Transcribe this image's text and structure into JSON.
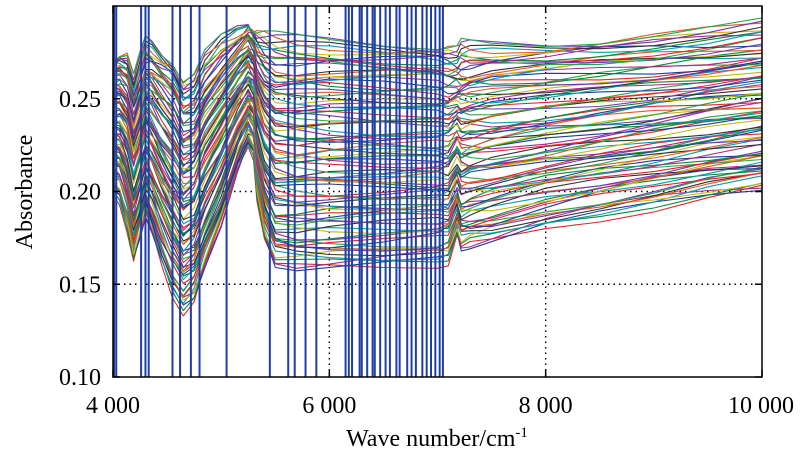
{
  "chart_data": {
    "type": "line",
    "title": "",
    "xlabel": "Wave number/cm",
    "xlabel_superscript": "-1",
    "ylabel": "Absorbance",
    "xlim": [
      4000,
      10000
    ],
    "ylim": [
      0.1,
      0.3
    ],
    "x_ticks": [
      4000,
      6000,
      8000,
      10000
    ],
    "x_tick_labels": [
      "4 000",
      "6 000",
      "8 000",
      "10 000"
    ],
    "y_ticks": [
      0.1,
      0.15,
      0.2,
      0.25
    ],
    "y_tick_labels": [
      "0.10",
      "0.15",
      "0.20",
      "0.25"
    ],
    "grid": "dotted",
    "series_count": 90,
    "spectrum_shape": {
      "x": [
        4000,
        4060,
        4130,
        4190,
        4250,
        4300,
        4360,
        4450,
        4550,
        4650,
        4750,
        4850,
        5000,
        5150,
        5250,
        5300,
        5330,
        5400,
        5500,
        5700,
        6000,
        6500,
        7000,
        7100,
        7180,
        7220,
        7300,
        7500,
        8000,
        8500,
        9000,
        9500,
        10000
      ],
      "top_curve": [
        0.273,
        0.276,
        0.275,
        0.262,
        0.272,
        0.281,
        0.28,
        0.276,
        0.272,
        0.26,
        0.262,
        0.273,
        0.282,
        0.288,
        0.292,
        0.289,
        0.287,
        0.285,
        0.283,
        0.282,
        0.282,
        0.281,
        0.28,
        0.279,
        0.277,
        0.279,
        0.279,
        0.28,
        0.281,
        0.283,
        0.285,
        0.287,
        0.29
      ],
      "bottom_curve": [
        0.198,
        0.195,
        0.181,
        0.164,
        0.176,
        0.187,
        0.177,
        0.16,
        0.145,
        0.136,
        0.142,
        0.16,
        0.182,
        0.21,
        0.224,
        0.219,
        0.198,
        0.176,
        0.16,
        0.158,
        0.158,
        0.159,
        0.161,
        0.163,
        0.178,
        0.169,
        0.17,
        0.172,
        0.18,
        0.186,
        0.192,
        0.198,
        0.202
      ]
    },
    "vertical_lines_x": [
      4010,
      4030,
      4260,
      4300,
      4330,
      4550,
      4620,
      4720,
      4800,
      5050,
      5450,
      5620,
      5680,
      5780,
      5880,
      6150,
      6180,
      6210,
      6280,
      6300,
      6350,
      6400,
      6420,
      6470,
      6520,
      6560,
      6620,
      6650,
      6720,
      6760,
      6800,
      6860,
      6900,
      6940,
      6980,
      7020,
      7050
    ],
    "vertical_line_color": "#1f3fa6",
    "series_palette": [
      "#e3262b",
      "#1e3c9e",
      "#0b8a3a",
      "#a9298b",
      "#0c9ab0",
      "#c9b812",
      "#333333",
      "#e05a24",
      "#6a3db0",
      "#2aa54a"
    ]
  }
}
